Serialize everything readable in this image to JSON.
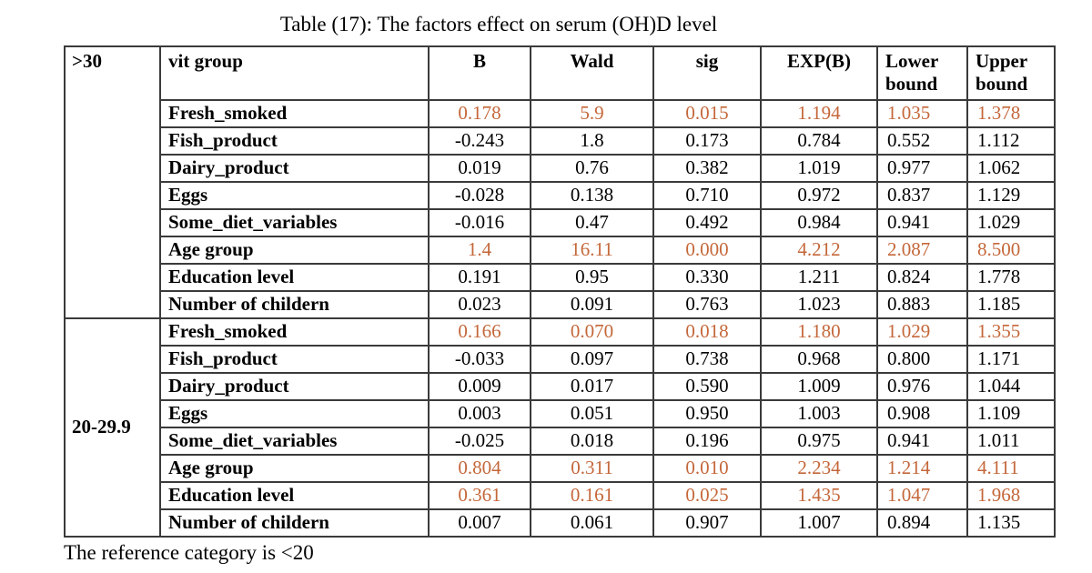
{
  "title": "Table (17): The factors effect on serum (OH)D level",
  "footnote": "The reference category is <20",
  "colors": {
    "highlight_text": "#C4673A",
    "body_text": "#000000",
    "border": "#3a3a3a",
    "background": "#ffffff"
  },
  "table": {
    "headers": [
      "vit group",
      "B",
      "Wald",
      "sig",
      "EXP(B)",
      "Lower bound",
      "Upper bound"
    ],
    "groups": [
      {
        "label": ">30",
        "rows": [
          {
            "label": "Fresh_smoked",
            "values": [
              "0.178",
              "5.9",
              "0.015",
              "1.194",
              "1.035",
              "1.378"
            ],
            "highlight": true
          },
          {
            "label": "Fish_product",
            "values": [
              "-0.243",
              "1.8",
              "0.173",
              "0.784",
              "0.552",
              "1.112"
            ],
            "highlight": false
          },
          {
            "label": "Dairy_product",
            "values": [
              "0.019",
              "0.76",
              "0.382",
              "1.019",
              "0.977",
              "1.062"
            ],
            "highlight": false
          },
          {
            "label": "Eggs",
            "values": [
              "-0.028",
              "0.138",
              "0.710",
              "0.972",
              "0.837",
              "1.129"
            ],
            "highlight": false
          },
          {
            "label": "Some_diet_variables",
            "values": [
              "-0.016",
              "0.47",
              "0.492",
              "0.984",
              "0.941",
              "1.029"
            ],
            "highlight": false
          },
          {
            "label": "Age group",
            "values": [
              "1.4",
              "16.11",
              "0.000",
              "4.212",
              "2.087",
              "8.500"
            ],
            "highlight": true
          },
          {
            "label": "Education level",
            "values": [
              "0.191",
              "0.95",
              "0.330",
              "1.211",
              "0.824",
              "1.778"
            ],
            "highlight": false
          },
          {
            "label": "Number of childern",
            "values": [
              "0.023",
              "0.091",
              "0.763",
              "1.023",
              "0.883",
              "1.185"
            ],
            "highlight": false
          }
        ]
      },
      {
        "label": "20-29.9",
        "rows": [
          {
            "label": "Fresh_smoked",
            "values": [
              "0.166",
              "0.070",
              "0.018",
              "1.180",
              "1.029",
              "1.355"
            ],
            "highlight": true
          },
          {
            "label": "Fish_product",
            "values": [
              "-0.033",
              "0.097",
              "0.738",
              "0.968",
              "0.800",
              "1.171"
            ],
            "highlight": false
          },
          {
            "label": "Dairy_product",
            "values": [
              "0.009",
              "0.017",
              "0.590",
              "1.009",
              "0.976",
              "1.044"
            ],
            "highlight": false
          },
          {
            "label": "Eggs",
            "values": [
              "0.003",
              "0.051",
              "0.950",
              "1.003",
              "0.908",
              "1.109"
            ],
            "highlight": false
          },
          {
            "label": "Some_diet_variables",
            "values": [
              "-0.025",
              "0.018",
              "0.196",
              "0.975",
              "0.941",
              "1.011"
            ],
            "highlight": false
          },
          {
            "label": "Age group",
            "values": [
              "0.804",
              "0.311",
              "0.010",
              "2.234",
              "1.214",
              "4.111"
            ],
            "highlight": true
          },
          {
            "label": "Education level",
            "values": [
              "0.361",
              "0.161",
              "0.025",
              "1.435",
              "1.047",
              "1.968"
            ],
            "highlight": true
          },
          {
            "label": "Number of childern",
            "values": [
              "0.007",
              "0.061",
              "0.907",
              "1.007",
              "0.894",
              "1.135"
            ],
            "highlight": false
          }
        ]
      }
    ]
  }
}
